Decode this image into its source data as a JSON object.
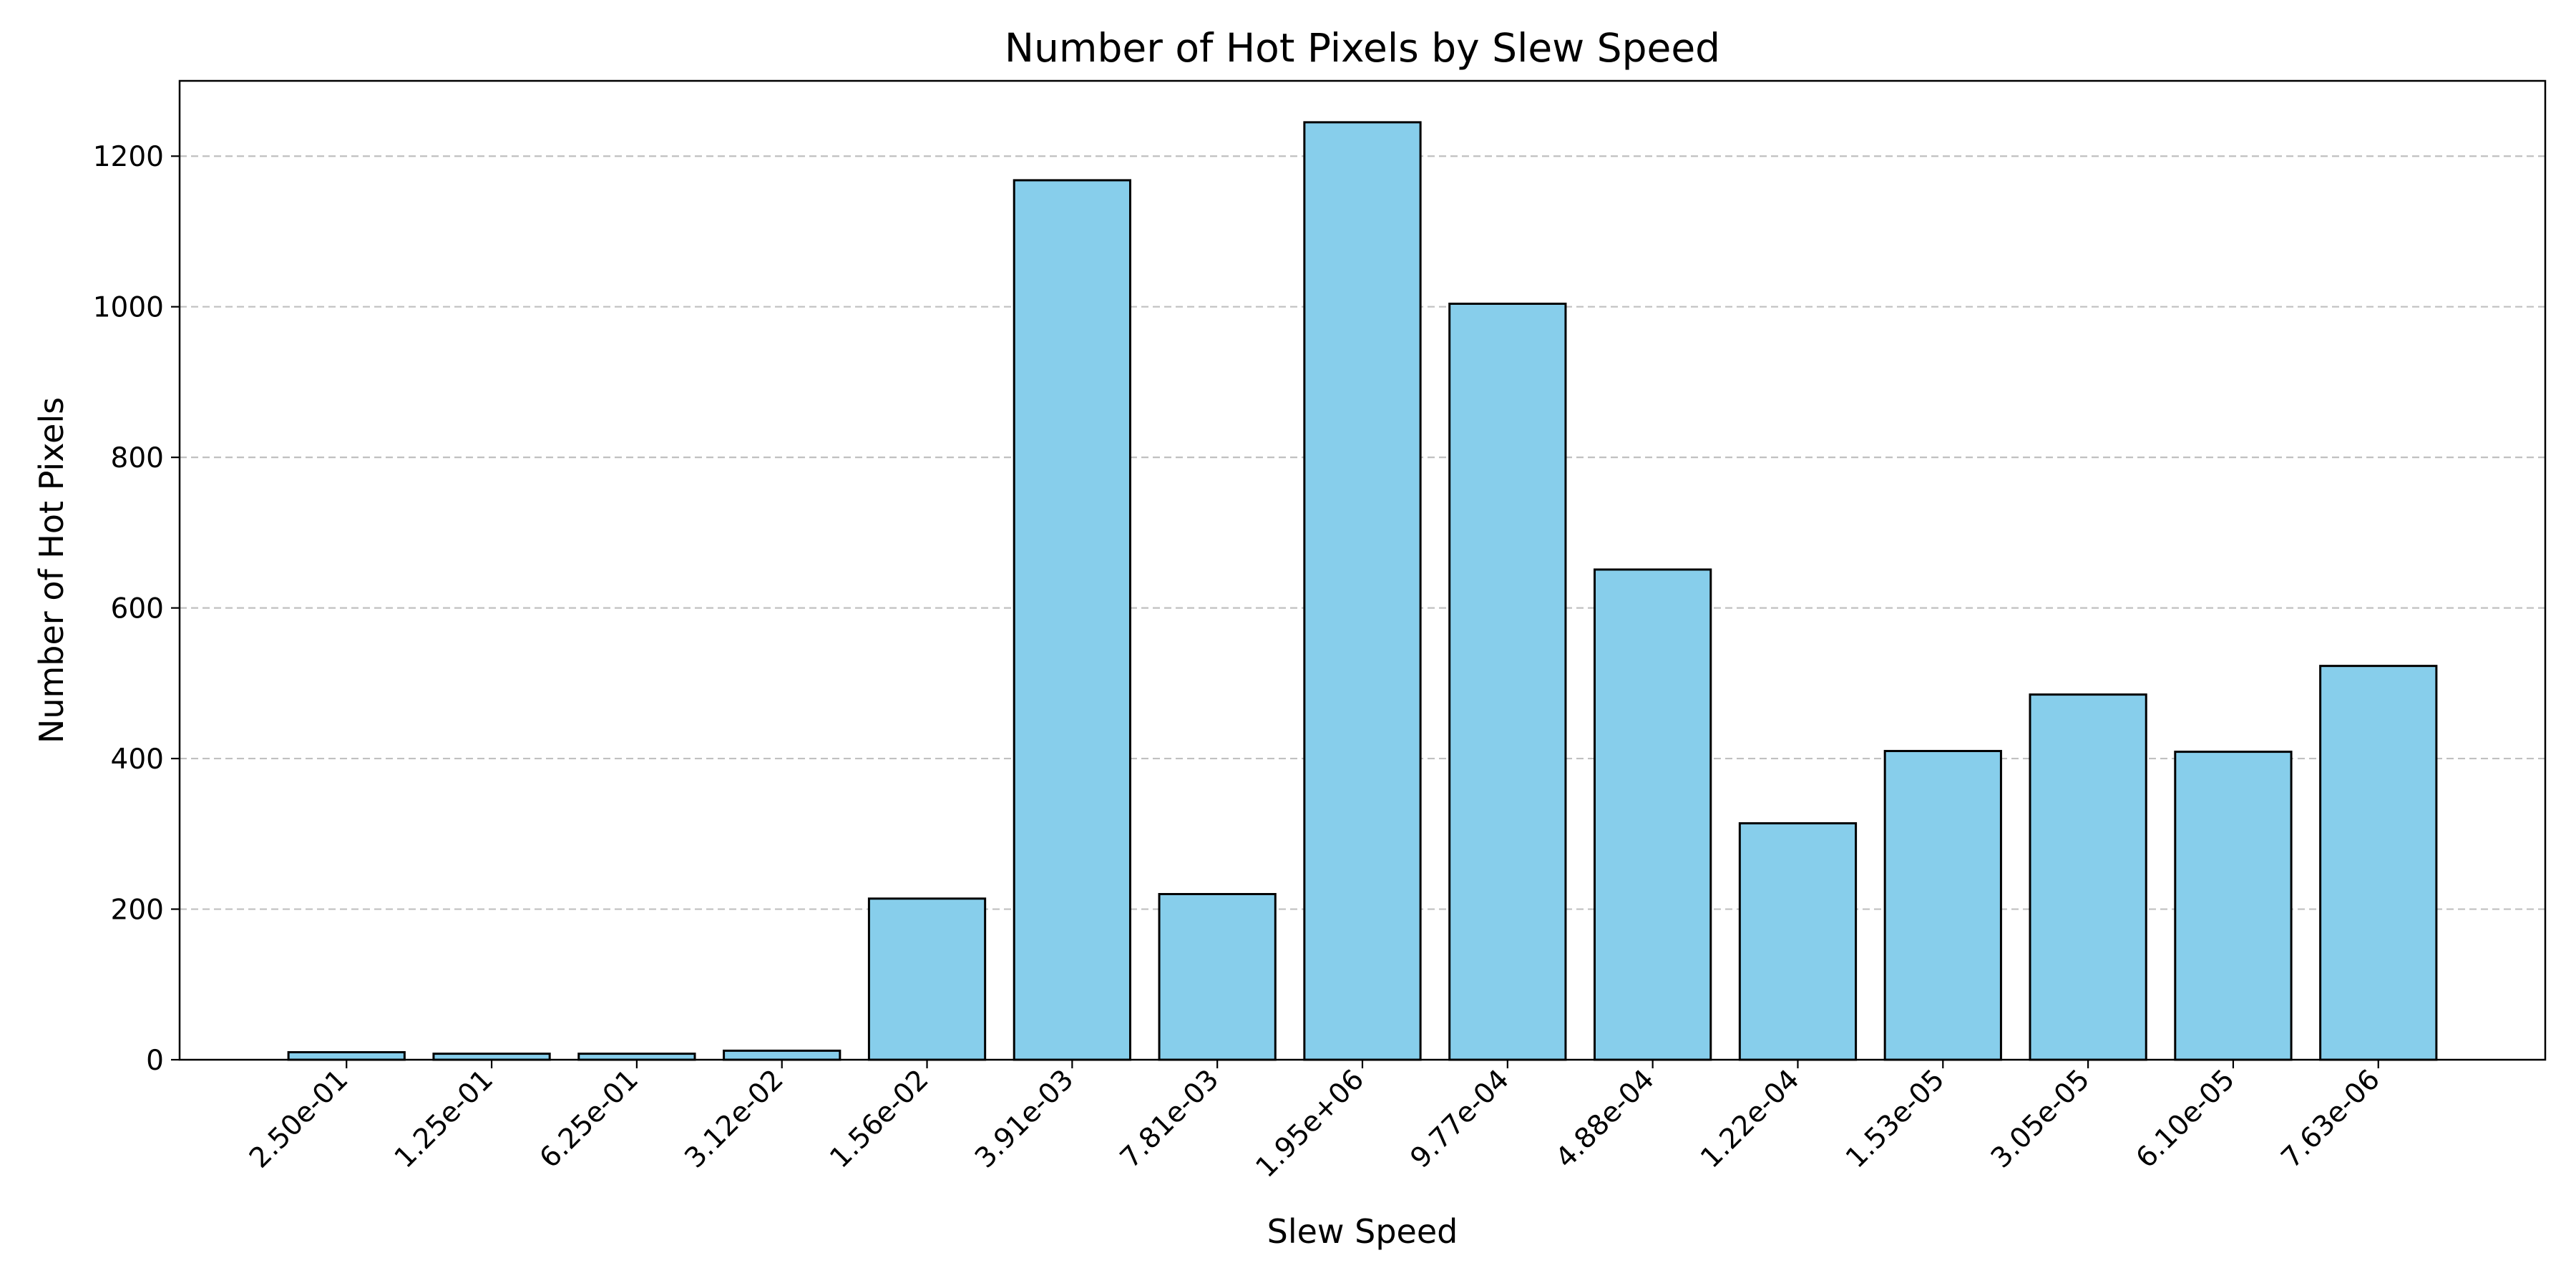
{
  "chart_data": {
    "type": "bar",
    "title": "Number of Hot Pixels by Slew Speed",
    "xlabel": "Slew Speed",
    "ylabel": "Number of Hot Pixels",
    "categories": [
      "2.50e-01",
      "1.25e-01",
      "6.25e-01",
      "3.12e-02",
      "1.56e-02",
      "3.91e-03",
      "7.81e-03",
      "1.95e+06",
      "9.77e-04",
      "4.88e-04",
      "1.22e-04",
      "1.53e-05",
      "3.05e-05",
      "6.10e-05",
      "7.63e-06"
    ],
    "values": [
      10,
      8,
      8,
      12,
      214,
      1168,
      220,
      1245,
      1004,
      651,
      314,
      410,
      485,
      409,
      523
    ],
    "ylim": [
      0,
      1300
    ],
    "yticks": [
      0,
      200,
      400,
      600,
      800,
      1000,
      1200
    ],
    "grid": "y-dashed",
    "legend": "none",
    "colors": {
      "bar_fill": "#87CEEB",
      "bar_edge": "#000000",
      "grid": "#c0c0c0"
    }
  }
}
